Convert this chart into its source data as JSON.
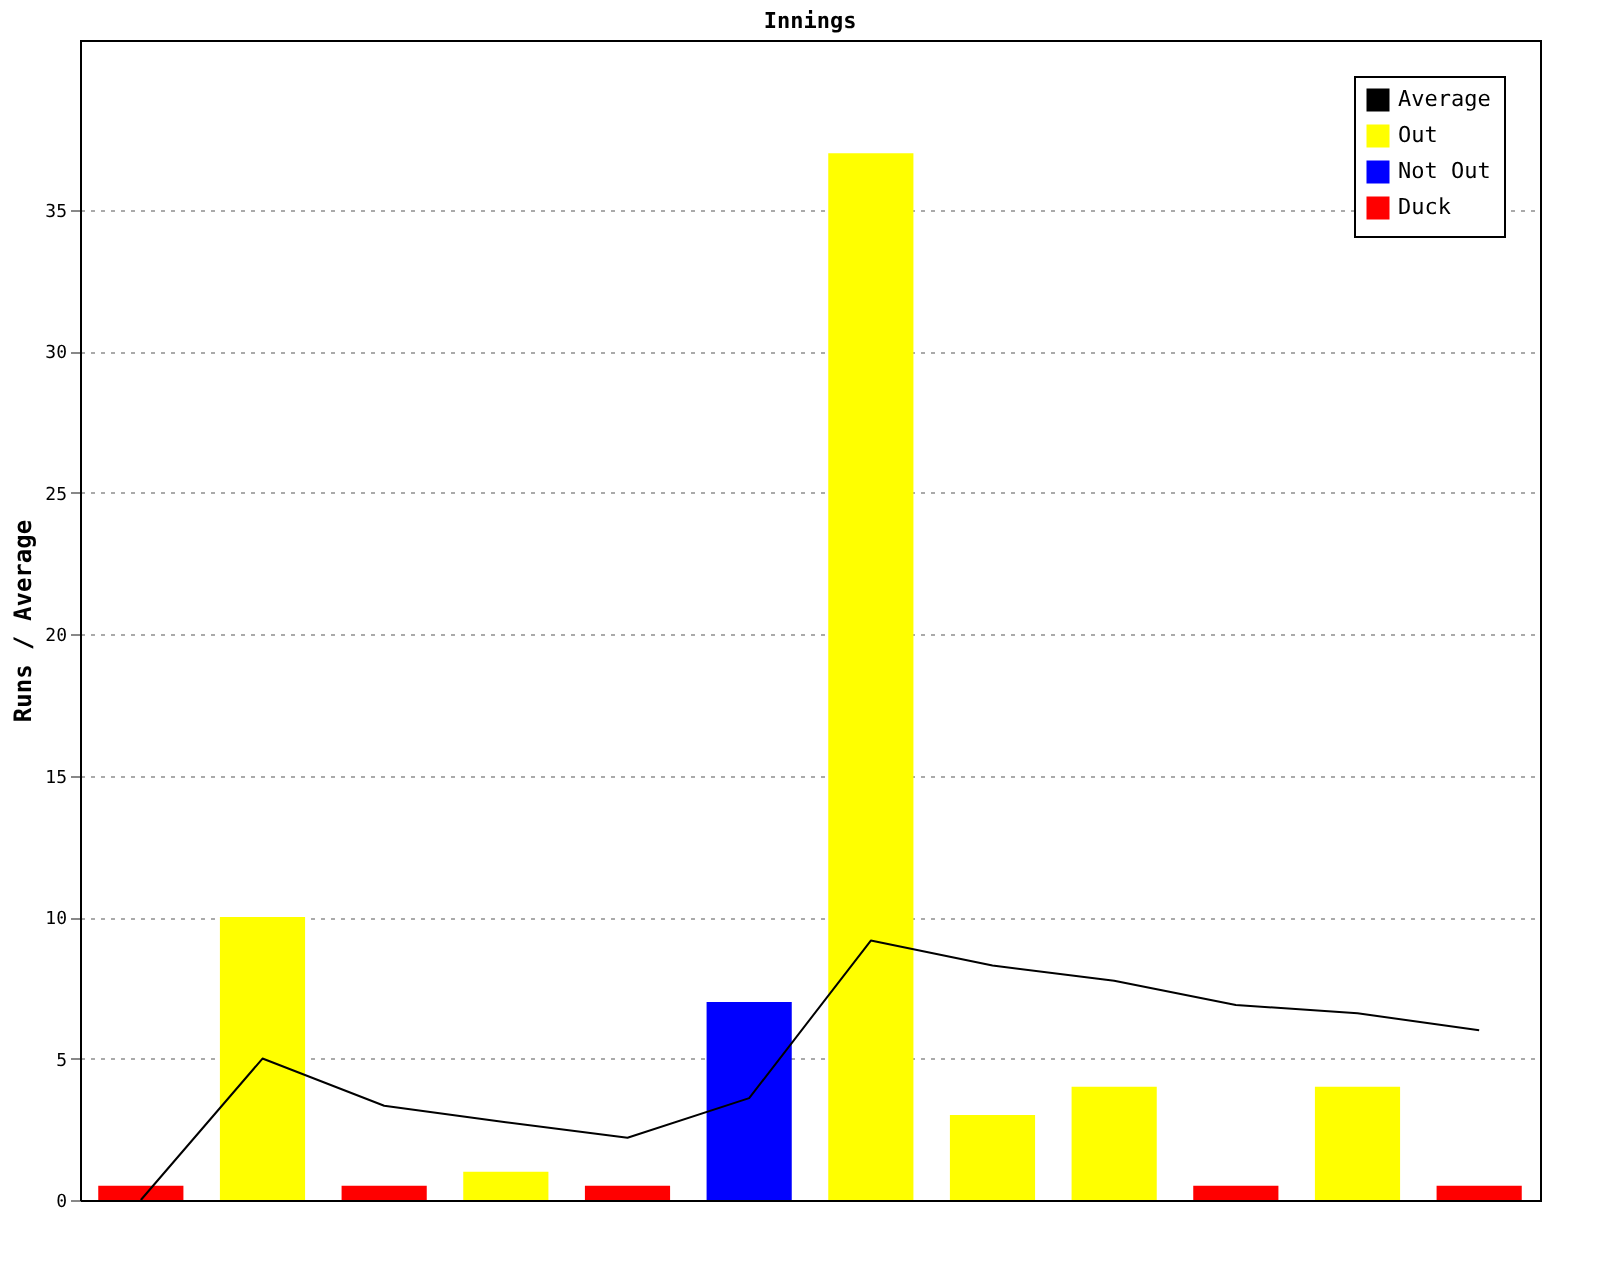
{
  "chart_data": {
    "type": "bar",
    "title": "Innings",
    "ylabel": "Runs / Average",
    "categories": [
      null,
      null,
      null,
      null,
      null,
      null,
      null,
      null,
      null,
      null,
      null,
      null
    ],
    "series": [
      {
        "name": "Average",
        "type": "line",
        "color": "#000000",
        "values": [
          0,
          5,
          3.33,
          2.75,
          2.2,
          3.6,
          9.17,
          8.29,
          7.75,
          6.89,
          6.6,
          6
        ]
      },
      {
        "name": "Out",
        "color": "#ffff00",
        "values": [
          null,
          10,
          null,
          1,
          null,
          null,
          37,
          3,
          4,
          null,
          4,
          null
        ]
      },
      {
        "name": "Not Out",
        "color": "#0000ff",
        "values": [
          null,
          null,
          null,
          null,
          null,
          7,
          null,
          null,
          null,
          null,
          null,
          null
        ]
      },
      {
        "name": "Duck",
        "color": "#ff0000",
        "values": [
          0.5,
          null,
          0.5,
          null,
          0.5,
          null,
          null,
          null,
          null,
          0.5,
          null,
          0.5
        ]
      }
    ],
    "ylim": [
      0,
      41
    ],
    "yticks": [
      0,
      5,
      10,
      15,
      20,
      25,
      30,
      35
    ],
    "grid": "y",
    "legend": "top right",
    "tick_labels": "y",
    "line_style": "solid",
    "marker": "none"
  }
}
